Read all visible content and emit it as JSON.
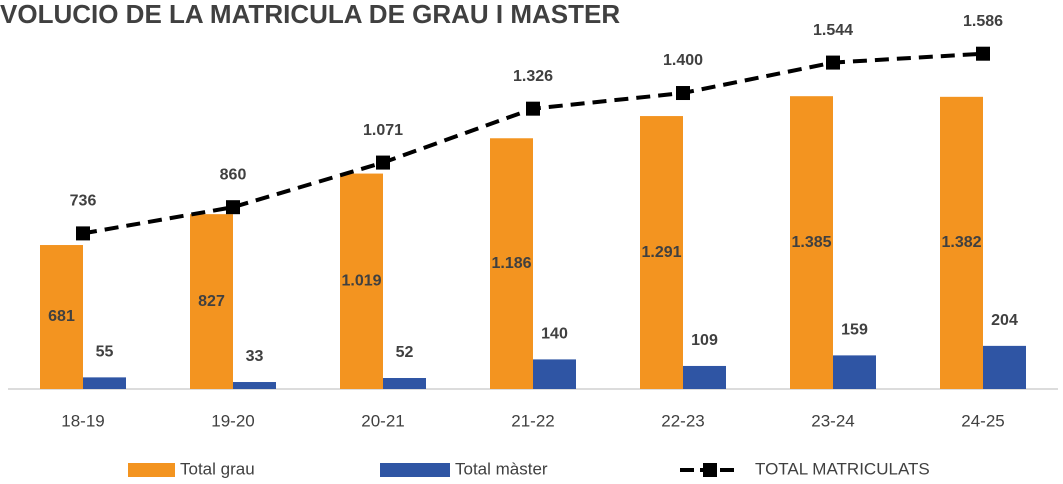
{
  "chart_data": {
    "type": "bar-line",
    "title": "VOLUCIO DE LA MATRICULA DE GRAU I MASTER",
    "categories": [
      "18-19",
      "19-20",
      "20-21",
      "21-22",
      "22-23",
      "23-24",
      "24-25"
    ],
    "series": [
      {
        "name": "Total grau",
        "type": "bar",
        "color": "#f39420",
        "values": [
          681,
          827,
          1019,
          1186,
          1291,
          1385,
          1382
        ],
        "value_labels": [
          "681",
          "827",
          "1.019",
          "1.186",
          "1.291",
          "1.385",
          "1.382"
        ]
      },
      {
        "name": "Total màster",
        "type": "bar",
        "color": "#2f55a4",
        "values": [
          55,
          33,
          52,
          140,
          109,
          159,
          204
        ]
      },
      {
        "name": "TOTAL MATRICULATS",
        "type": "line",
        "color": "#000000",
        "values": [
          736,
          860,
          1071,
          1326,
          1400,
          1544,
          1586
        ],
        "value_labels": [
          "736",
          "860",
          "1.071",
          "1.326",
          "1.400",
          "1.544",
          "1.586"
        ]
      }
    ],
    "ylim": [
      0,
      1840
    ],
    "grid": false,
    "legend": "bottom"
  }
}
